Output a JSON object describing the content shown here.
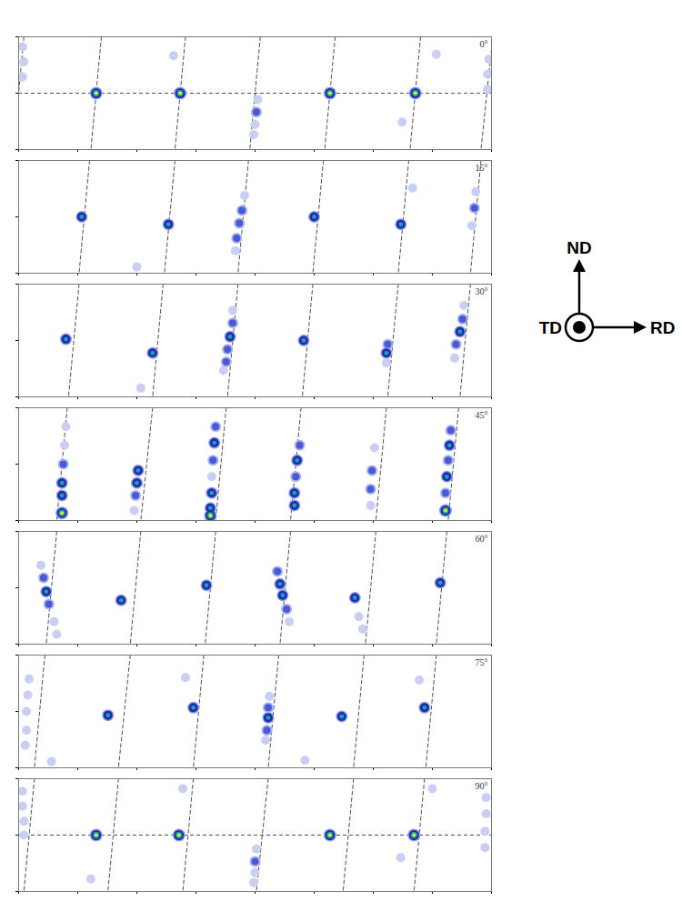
{
  "chart_data": [
    {
      "type": "scatter",
      "title": "0°",
      "xlim": [
        0,
        360
      ],
      "ylim": [
        0,
        90
      ],
      "xticks": [
        0,
        45,
        90,
        135,
        180,
        225,
        270,
        315,
        360
      ],
      "yticks": [
        0,
        45,
        90
      ],
      "tick_labels": false,
      "grid": false,
      "x": [
        59,
        123,
        237,
        302,
        3,
        4,
        3,
        118,
        182,
        181,
        180,
        179,
        292,
        358,
        357,
        357,
        318
      ],
      "y": [
        45,
        45,
        45,
        45,
        82,
        70,
        58,
        75,
        40,
        30,
        20,
        12,
        22,
        72,
        60,
        48,
        76
      ],
      "intensity": [
        4,
        4,
        4,
        4,
        1,
        1,
        1,
        1,
        1,
        2,
        1,
        1,
        1,
        1,
        1,
        1,
        1
      ],
      "dashed_lines": [
        [
          4,
          -4
        ],
        [
          63,
          55
        ],
        [
          127,
          119
        ],
        [
          184,
          176
        ],
        [
          241,
          233
        ],
        [
          306,
          298
        ],
        [
          361,
          352
        ]
      ],
      "hline": 45
    },
    {
      "type": "scatter",
      "title": "15°",
      "xlim": [
        0,
        360
      ],
      "ylim": [
        0,
        90
      ],
      "xticks": [
        0,
        45,
        90,
        135,
        180,
        225,
        270,
        315,
        360
      ],
      "yticks": [
        0,
        45,
        90
      ],
      "tick_labels": false,
      "grid": false,
      "x": [
        48,
        114,
        225,
        291,
        172,
        170,
        168,
        166,
        165,
        348,
        347,
        345,
        90,
        300
      ],
      "y": [
        45,
        39,
        45,
        39,
        62,
        50,
        40,
        28,
        18,
        65,
        52,
        38,
        5,
        68
      ],
      "intensity": [
        3,
        3,
        3,
        3,
        1,
        2,
        2,
        2,
        1,
        1,
        2,
        1,
        1,
        1
      ],
      "dashed_lines": [
        [
          54,
          46
        ],
        [
          119,
          111
        ],
        [
          175,
          167
        ],
        [
          232,
          224
        ],
        [
          297,
          289
        ],
        [
          352,
          344
        ]
      ]
    },
    {
      "type": "scatter",
      "title": "30°",
      "xlim": [
        0,
        360
      ],
      "ylim": [
        0,
        90
      ],
      "xticks": [
        0,
        45,
        90,
        135,
        180,
        225,
        270,
        315,
        360
      ],
      "yticks": [
        0,
        45,
        90
      ],
      "tick_labels": false,
      "grid": false,
      "x": [
        36,
        102,
        161,
        217,
        280,
        336,
        163,
        163,
        159,
        158,
        156,
        339,
        338,
        333,
        332,
        281,
        280,
        93
      ],
      "y": [
        46,
        35,
        48,
        45,
        35,
        52,
        69,
        59,
        38,
        28,
        21,
        73,
        62,
        42,
        31,
        42,
        27,
        7
      ],
      "intensity": [
        3,
        3,
        3,
        3,
        3,
        3,
        1,
        2,
        2,
        2,
        1,
        1,
        2,
        2,
        1,
        2,
        1,
        1
      ],
      "dashed_lines": [
        [
          46,
          38
        ],
        [
          110,
          102
        ],
        [
          167,
          159
        ],
        [
          224,
          216
        ],
        [
          289,
          281
        ],
        [
          344,
          336
        ]
      ]
    },
    {
      "type": "scatter",
      "title": "45°",
      "xlim": [
        0,
        360
      ],
      "ylim": [
        0,
        90
      ],
      "xticks": [
        0,
        45,
        90,
        135,
        180,
        225,
        270,
        315,
        360
      ],
      "yticks": [
        0,
        45,
        90
      ],
      "tick_labels": false,
      "grid": false,
      "x": [
        36,
        35,
        34,
        33,
        33,
        33,
        91,
        90,
        89,
        88,
        150,
        149,
        148,
        147,
        147,
        146,
        146,
        214,
        212,
        211,
        210,
        210,
        271,
        269,
        268,
        268,
        329,
        328,
        327,
        326,
        325,
        325
      ],
      "y": [
        75,
        60,
        45,
        30,
        20,
        6,
        40,
        30,
        20,
        8,
        75,
        62,
        48,
        35,
        22,
        10,
        4,
        60,
        48,
        35,
        22,
        12,
        58,
        40,
        25,
        12,
        72,
        60,
        48,
        35,
        22,
        8
      ],
      "intensity": [
        1,
        1,
        2,
        3,
        3,
        4,
        3,
        3,
        2,
        1,
        2,
        3,
        2,
        1,
        3,
        3,
        4,
        2,
        3,
        2,
        3,
        3,
        1,
        2,
        2,
        1,
        2,
        3,
        2,
        3,
        2,
        4
      ],
      "dashed_lines": [
        [
          37,
          29
        ],
        [
          102,
          93
        ],
        [
          158,
          150
        ],
        [
          215,
          207
        ],
        [
          280,
          272
        ],
        [
          335,
          327
        ]
      ]
    },
    {
      "type": "scatter",
      "title": "60°",
      "xlim": [
        0,
        360
      ],
      "ylim": [
        0,
        90
      ],
      "xticks": [
        0,
        45,
        90,
        135,
        180,
        225,
        270,
        315,
        360
      ],
      "yticks": [
        0,
        45,
        90
      ],
      "tick_labels": false,
      "grid": false,
      "x": [
        17,
        19,
        21,
        23,
        27,
        29,
        78,
        143,
        197,
        199,
        201,
        204,
        206,
        256,
        259,
        262,
        321
      ],
      "y": [
        63,
        53,
        42,
        32,
        18,
        8,
        35,
        47,
        58,
        48,
        39,
        28,
        18,
        37,
        22,
        12,
        49
      ],
      "intensity": [
        1,
        2,
        3,
        2,
        1,
        1,
        3,
        3,
        2,
        3,
        3,
        2,
        1,
        3,
        1,
        1,
        3
      ],
      "dashed_lines": [
        [
          29,
          21
        ],
        [
          93,
          85
        ],
        [
          150,
          142
        ],
        [
          207,
          199
        ],
        [
          272,
          264
        ],
        [
          326,
          318
        ]
      ]
    },
    {
      "type": "scatter",
      "title": "75°",
      "xlim": [
        0,
        360
      ],
      "ylim": [
        0,
        90
      ],
      "xticks": [
        0,
        45,
        90,
        135,
        180,
        225,
        270,
        315,
        360
      ],
      "yticks": [
        0,
        45,
        90
      ],
      "tick_labels": false,
      "grid": false,
      "x": [
        68,
        133,
        246,
        309,
        191,
        190,
        190,
        189,
        188,
        8,
        7,
        6,
        6,
        5,
        127,
        25,
        218,
        305
      ],
      "y": [
        42,
        48,
        41,
        48,
        57,
        48,
        40,
        30,
        22,
        71,
        58,
        45,
        30,
        18,
        72,
        5,
        6,
        70
      ],
      "intensity": [
        3,
        3,
        3,
        3,
        1,
        2,
        3,
        2,
        1,
        1,
        1,
        1,
        1,
        1,
        1,
        1,
        1,
        1
      ],
      "dashed_lines": [
        [
          20,
          12
        ],
        [
          85,
          76
        ],
        [
          141,
          133
        ],
        [
          198,
          190
        ],
        [
          263,
          255
        ],
        [
          318,
          310
        ]
      ]
    },
    {
      "type": "scatter",
      "title": "90°",
      "xlim": [
        0,
        360
      ],
      "ylim": [
        0,
        90
      ],
      "xticks": [
        0,
        45,
        90,
        135,
        180,
        225,
        270,
        315,
        360
      ],
      "yticks": [
        0,
        45,
        90
      ],
      "tick_labels": false,
      "grid": false,
      "x": [
        59,
        122,
        237,
        301,
        3,
        3,
        4,
        4,
        181,
        180,
        180,
        179,
        356,
        356,
        355,
        355,
        125,
        291,
        315,
        55
      ],
      "y": [
        45,
        45,
        45,
        45,
        80,
        68,
        56,
        45,
        34,
        24,
        15,
        7,
        75,
        62,
        48,
        35,
        82,
        27,
        82,
        10
      ],
      "intensity": [
        4,
        4,
        4,
        4,
        1,
        1,
        1,
        1,
        1,
        2,
        1,
        1,
        1,
        1,
        1,
        1,
        1,
        1,
        1,
        1
      ],
      "dashed_lines": [
        [
          12,
          4
        ],
        [
          76,
          68
        ],
        [
          133,
          125
        ],
        [
          190,
          181
        ],
        [
          255,
          247
        ],
        [
          309,
          301
        ],
        [
          368,
          360
        ]
      ],
      "hline": 45
    }
  ],
  "axes_icon": {
    "up": "ND",
    "right": "RD",
    "out": "TD"
  }
}
